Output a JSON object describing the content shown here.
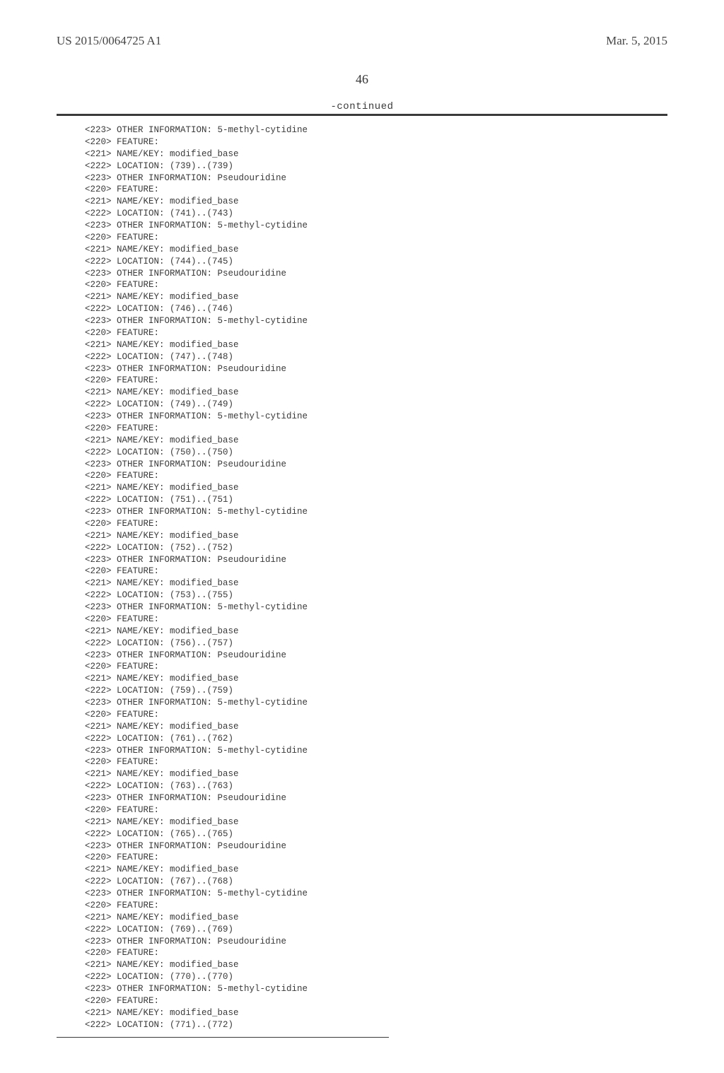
{
  "header": {
    "pub_number": "US 2015/0064725 A1",
    "pub_date": "Mar. 5, 2015"
  },
  "page_number": "46",
  "continued_label": "-continued",
  "features": [
    {
      "tag223": "OTHER INFORMATION: 5-methyl-cytidine",
      "name_key": "modified_base",
      "location": "(739)..(739)"
    },
    {
      "tag223": "OTHER INFORMATION: Pseudouridine",
      "name_key": "modified_base",
      "location": "(741)..(743)"
    },
    {
      "tag223": "OTHER INFORMATION: 5-methyl-cytidine",
      "name_key": "modified_base",
      "location": "(744)..(745)"
    },
    {
      "tag223": "OTHER INFORMATION: Pseudouridine",
      "name_key": "modified_base",
      "location": "(746)..(746)"
    },
    {
      "tag223": "OTHER INFORMATION: 5-methyl-cytidine",
      "name_key": "modified_base",
      "location": "(747)..(748)"
    },
    {
      "tag223": "OTHER INFORMATION: Pseudouridine",
      "name_key": "modified_base",
      "location": "(749)..(749)"
    },
    {
      "tag223": "OTHER INFORMATION: 5-methyl-cytidine",
      "name_key": "modified_base",
      "location": "(750)..(750)"
    },
    {
      "tag223": "OTHER INFORMATION: Pseudouridine",
      "name_key": "modified_base",
      "location": "(751)..(751)"
    },
    {
      "tag223": "OTHER INFORMATION: 5-methyl-cytidine",
      "name_key": "modified_base",
      "location": "(752)..(752)"
    },
    {
      "tag223": "OTHER INFORMATION: Pseudouridine",
      "name_key": "modified_base",
      "location": "(753)..(755)"
    },
    {
      "tag223": "OTHER INFORMATION: 5-methyl-cytidine",
      "name_key": "modified_base",
      "location": "(756)..(757)"
    },
    {
      "tag223": "OTHER INFORMATION: Pseudouridine",
      "name_key": "modified_base",
      "location": "(759)..(759)"
    },
    {
      "tag223": "OTHER INFORMATION: 5-methyl-cytidine",
      "name_key": "modified_base",
      "location": "(761)..(762)"
    },
    {
      "tag223": "OTHER INFORMATION: 5-methyl-cytidine",
      "name_key": "modified_base",
      "location": "(763)..(763)"
    },
    {
      "tag223": "OTHER INFORMATION: Pseudouridine",
      "name_key": "modified_base",
      "location": "(765)..(765)"
    },
    {
      "tag223": "OTHER INFORMATION: Pseudouridine",
      "name_key": "modified_base",
      "location": "(767)..(768)"
    },
    {
      "tag223": "OTHER INFORMATION: 5-methyl-cytidine",
      "name_key": "modified_base",
      "location": "(769)..(769)"
    },
    {
      "tag223": "OTHER INFORMATION: Pseudouridine",
      "name_key": "modified_base",
      "location": "(770)..(770)"
    },
    {
      "tag223": "OTHER INFORMATION: 5-methyl-cytidine",
      "name_key": "modified_base",
      "location": "(771)..(772)"
    }
  ],
  "labels": {
    "first223_prefix": "<223> ",
    "tag220": "<220> FEATURE:",
    "tag221_prefix": "<221> NAME/KEY: ",
    "tag222_prefix": "<222> LOCATION: ",
    "tag223_prefix": "<223> "
  }
}
